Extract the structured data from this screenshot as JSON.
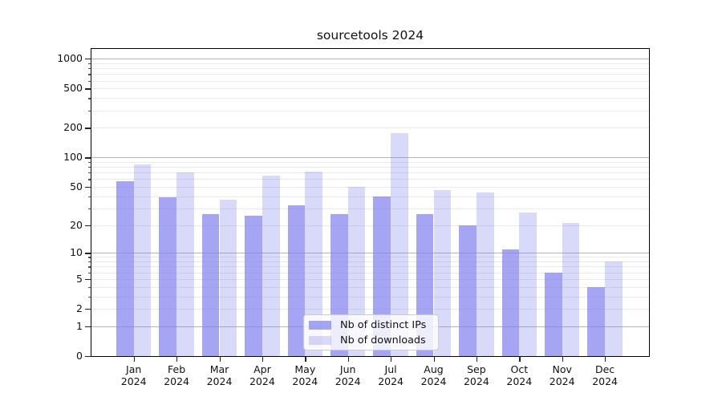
{
  "title": "sourcetools 2024",
  "chart_data": {
    "type": "bar",
    "title": "sourcetools 2024",
    "categories": [
      "Jan 2024",
      "Feb 2024",
      "Mar 2024",
      "Apr 2024",
      "May 2024",
      "Jun 2024",
      "Jul 2024",
      "Aug 2024",
      "Sep 2024",
      "Oct 2024",
      "Nov 2024",
      "Dec 2024"
    ],
    "x_tick_months": [
      "Jan",
      "Feb",
      "Mar",
      "Apr",
      "May",
      "Jun",
      "Jul",
      "Aug",
      "Sep",
      "Oct",
      "Nov",
      "Dec"
    ],
    "x_tick_year": "2024",
    "series": [
      {
        "name": "Nb of distinct IPs",
        "color": "#8282f0",
        "alpha": 0.72,
        "values": [
          57,
          39,
          26,
          25,
          32,
          26,
          40,
          26,
          20,
          11,
          6,
          4
        ]
      },
      {
        "name": "Nb of downloads",
        "color": "#8282f0",
        "alpha": 0.3,
        "values": [
          85,
          70,
          37,
          65,
          72,
          50,
          178,
          46,
          44,
          27,
          21,
          8
        ]
      }
    ],
    "yscale": "log1p",
    "y_tick_values": [
      0,
      1,
      2,
      5,
      10,
      20,
      50,
      100,
      200,
      500,
      1000
    ],
    "ylim": [
      0,
      1280
    ],
    "grid": "on",
    "grid_major_color": "#b4b4b4",
    "grid_minor_color": "#e9e9e9",
    "legend_position": "lower center",
    "background_color": "#ffffff"
  }
}
